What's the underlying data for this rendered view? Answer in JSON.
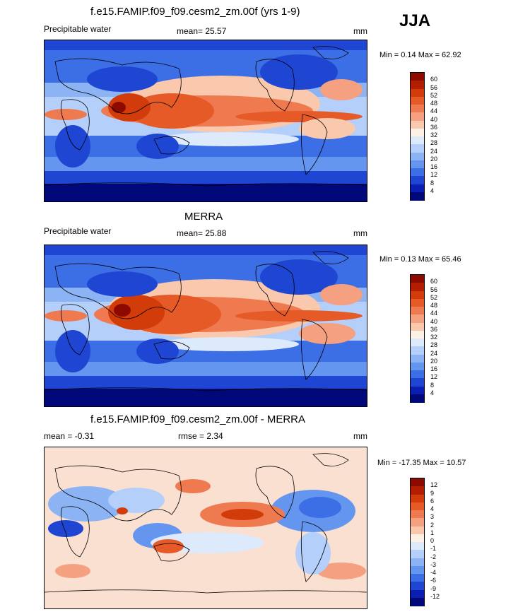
{
  "season": "JJA",
  "panels": [
    {
      "title": "f.e15.FAMIP.f09_f09.cesm2_zm.00f (yrs 1-9)",
      "left_label": "Precipitable water",
      "center_label": "mean=  25.57",
      "units": "mm",
      "minmax": "Min =  0.14 Max =  62.92",
      "colorbar": {
        "labels": [
          "60",
          "56",
          "52",
          "48",
          "44",
          "40",
          "36",
          "32",
          "28",
          "24",
          "20",
          "16",
          "12",
          "8",
          "4"
        ],
        "colors": [
          "#8c0a00",
          "#b41e00",
          "#d23c0a",
          "#e65a28",
          "#f07a50",
          "#f5a080",
          "#fac8ac",
          "#fff0e6",
          "#dceafc",
          "#b4d0fa",
          "#8cb4f5",
          "#6496f0",
          "#3c6ee6",
          "#1e46d2",
          "#0a1eb4",
          "#00087a"
        ]
      }
    },
    {
      "title": "MERRA",
      "left_label": "Precipitable water",
      "center_label": "mean=  25.88",
      "units": "mm",
      "minmax": "Min =  0.13 Max =  65.46",
      "colorbar": {
        "labels": [
          "60",
          "56",
          "52",
          "48",
          "44",
          "40",
          "36",
          "32",
          "28",
          "24",
          "20",
          "16",
          "12",
          "8",
          "4"
        ],
        "colors": [
          "#8c0a00",
          "#b41e00",
          "#d23c0a",
          "#e65a28",
          "#f07a50",
          "#f5a080",
          "#fac8ac",
          "#fff0e6",
          "#dceafc",
          "#b4d0fa",
          "#8cb4f5",
          "#6496f0",
          "#3c6ee6",
          "#1e46d2",
          "#0a1eb4",
          "#00087a"
        ]
      }
    },
    {
      "title": "f.e15.FAMIP.f09_f09.cesm2_zm.00f - MERRA",
      "left_label": "mean =  -0.31",
      "center_label": "rmse =   2.34",
      "units": "mm",
      "minmax": "Min = -17.35 Max =  10.57",
      "colorbar": {
        "labels": [
          "12",
          "9",
          "6",
          "4",
          "3",
          "2",
          "1",
          "0",
          "-1",
          "-2",
          "-3",
          "-4",
          "-6",
          "-9",
          "-12"
        ],
        "colors": [
          "#8c0a00",
          "#b41e00",
          "#d23c0a",
          "#e65a28",
          "#f07a50",
          "#f5a080",
          "#fac8ac",
          "#fff0e6",
          "#dceafc",
          "#b4d0fa",
          "#8cb4f5",
          "#6496f0",
          "#3c6ee6",
          "#1e46d2",
          "#0a1eb4",
          "#00087a"
        ]
      }
    }
  ]
}
